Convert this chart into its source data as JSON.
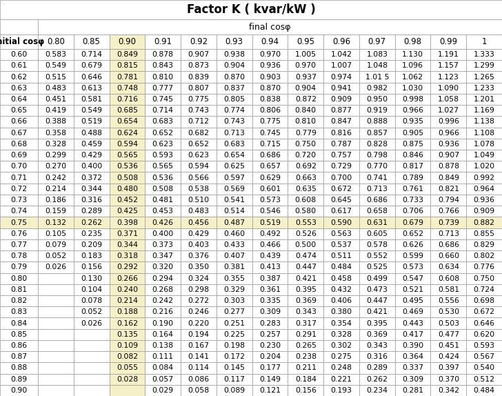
{
  "title": "Factor K ( kvar/kW )",
  "subtitle": "final cosφ",
  "row_header": "initial cosφ",
  "col_headers": [
    "0.80",
    "0.85",
    "0.90",
    "0.91",
    "0.92",
    "0.93",
    "0.94",
    "0.95",
    "0.96",
    "0.97",
    "0.98",
    "0.99",
    "1"
  ],
  "row_labels": [
    "0.60",
    "0.61",
    "0.62",
    "0.63",
    "0.64",
    "0.65",
    "0.66",
    "0.67",
    "0.68",
    "0.69",
    "0.70",
    "0.71",
    "0.72",
    "0.73",
    "0.74",
    "0.75",
    "0.76",
    "0.77",
    "0.78",
    "0.79",
    "0.80",
    "0.81",
    "0.82",
    "0.83",
    "0.84",
    "0.85",
    "0.86",
    "0.87",
    "0.88",
    "0.89",
    "0.90"
  ],
  "table_data": [
    [
      "0.583",
      "0.714",
      "0.849",
      "0.878",
      "0.907",
      "0.938",
      "0.970",
      "1.005",
      "1.042",
      "1.083",
      "1.130",
      "1.191",
      "1.333"
    ],
    [
      "0.549",
      "0.679",
      "0.815",
      "0.843",
      "0.873",
      "0.904",
      "0.936",
      "0.970",
      "1.007",
      "1.048",
      "1.096",
      "1.157",
      "1.299"
    ],
    [
      "0.515",
      "0.646",
      "0.781",
      "0.810",
      "0.839",
      "0.870",
      "0.903",
      "0.937",
      "0.974",
      "1.01 5",
      "1.062",
      "1.123",
      "1.265"
    ],
    [
      "0.483",
      "0.613",
      "0.748",
      "0.777",
      "0.807",
      "0.837",
      "0.870",
      "0.904",
      "0.941",
      "0.982",
      "1.030",
      "1.090",
      "1.233"
    ],
    [
      "0.451",
      "0.581",
      "0.716",
      "0.745",
      "0.775",
      "0.805",
      "0.838",
      "0.872",
      "0.909",
      "0.950",
      "0.998",
      "1.058",
      "1.201"
    ],
    [
      "0.419",
      "0.549",
      "0.685",
      "0.714",
      "0.743",
      "0.774",
      "0.806",
      "0.840",
      "0.877",
      "0.919",
      "0.966",
      "1.027",
      "1.169"
    ],
    [
      "0.388",
      "0.519",
      "0.654",
      "0.683",
      "0.712",
      "0.743",
      "0.775",
      "0.810",
      "0.847",
      "0.888",
      "0.935",
      "0.996",
      "1.138"
    ],
    [
      "0.358",
      "0.488",
      "0.624",
      "0.652",
      "0.682",
      "0.713",
      "0.745",
      "0.779",
      "0.816",
      "0.857",
      "0.905",
      "0.966",
      "1.108"
    ],
    [
      "0.328",
      "0.459",
      "0.594",
      "0.623",
      "0.652",
      "0.683",
      "0.715",
      "0.750",
      "0.787",
      "0.828",
      "0.875",
      "0.936",
      "1.078"
    ],
    [
      "0.299",
      "0.429",
      "0.565",
      "0.593",
      "0.623",
      "0.654",
      "0.686",
      "0.720",
      "0.757",
      "0.798",
      "0.846",
      "0.907",
      "1.049"
    ],
    [
      "0.270",
      "0.400",
      "0.536",
      "0.565",
      "0.594",
      "0.625",
      "0.657",
      "0.692",
      "0.729",
      "0.770",
      "0.817",
      "0.878",
      "1.020"
    ],
    [
      "0.242",
      "0.372",
      "0.508",
      "0.536",
      "0.566",
      "0.597",
      "0.629",
      "0.663",
      "0.700",
      "0.741",
      "0.789",
      "0.849",
      "0.992"
    ],
    [
      "0.214",
      "0.344",
      "0.480",
      "0.508",
      "0.538",
      "0.569",
      "0.601",
      "0.635",
      "0.672",
      "0.713",
      "0.761",
      "0.821",
      "0.964"
    ],
    [
      "0.186",
      "0.316",
      "0.452",
      "0.481",
      "0.510",
      "0.541",
      "0.573",
      "0.608",
      "0.645",
      "0.686",
      "0.733",
      "0.794",
      "0.936"
    ],
    [
      "0.159",
      "0.289",
      "0.425",
      "0.453",
      "0.483",
      "0.514",
      "0.546",
      "0.580",
      "0.617",
      "0.658",
      "0.706",
      "0.766",
      "0.909"
    ],
    [
      "0.132",
      "0.262",
      "0.398",
      "0.426",
      "0.456",
      "0.487",
      "0.519",
      "0.553",
      "0.590",
      "0.631",
      "0.679",
      "0.739",
      "0.882"
    ],
    [
      "0.105",
      "0.235",
      "0.371",
      "0.400",
      "0.429",
      "0.460",
      "0.492",
      "0.526",
      "0.563",
      "0.605",
      "0.652",
      "0.713",
      "0.855"
    ],
    [
      "0.079",
      "0.209",
      "0.344",
      "0.373",
      "0.403",
      "0.433",
      "0.466",
      "0.500",
      "0.537",
      "0.578",
      "0.626",
      "0.686",
      "0.829"
    ],
    [
      "0.052",
      "0.183",
      "0.318",
      "0.347",
      "0.376",
      "0.407",
      "0.439",
      "0.474",
      "0.511",
      "0.552",
      "0.599",
      "0.660",
      "0.802"
    ],
    [
      "0.026",
      "0.156",
      "0.292",
      "0.320",
      "0.350",
      "0.381",
      "0.413",
      "0.447",
      "0.484",
      "0.525",
      "0.573",
      "0.634",
      "0.776"
    ],
    [
      "",
      "0.130",
      "0.266",
      "0.294",
      "0.324",
      "0.355",
      "0.387",
      "0.421",
      "0.458",
      "0.499",
      "0.547",
      "0.608",
      "0.750"
    ],
    [
      "",
      "0.104",
      "0.240",
      "0.268",
      "0.298",
      "0.329",
      "0.361",
      "0.395",
      "0.432",
      "0.473",
      "0.521",
      "0.581",
      "0.724"
    ],
    [
      "",
      "0.078",
      "0.214",
      "0.242",
      "0.272",
      "0.303",
      "0.335",
      "0.369",
      "0.406",
      "0.447",
      "0.495",
      "0.556",
      "0.698"
    ],
    [
      "",
      "0.052",
      "0.188",
      "0.216",
      "0.246",
      "0.277",
      "0.309",
      "0.343",
      "0.380",
      "0.421",
      "0.469",
      "0.530",
      "0.672"
    ],
    [
      "",
      "0.026",
      "0.162",
      "0.190",
      "0.220",
      "0.251",
      "0.283",
      "0.317",
      "0.354",
      "0.395",
      "0.443",
      "0.503",
      "0.646"
    ],
    [
      "",
      "",
      "0.135",
      "0.164",
      "0.194",
      "0.225",
      "0.257",
      "0.291",
      "0.328",
      "0.369",
      "0.417",
      "0.477",
      "0.620"
    ],
    [
      "",
      "",
      "0.109",
      "0.138",
      "0.167",
      "0.198",
      "0.230",
      "0.265",
      "0.302",
      "0.343",
      "0.390",
      "0.451",
      "0.593"
    ],
    [
      "",
      "",
      "0.082",
      "0.111",
      "0.141",
      "0.172",
      "0.204",
      "0.238",
      "0.275",
      "0.316",
      "0.364",
      "0.424",
      "0.567"
    ],
    [
      "",
      "",
      "0.055",
      "0.084",
      "0.114",
      "0.145",
      "0.177",
      "0.211",
      "0.248",
      "0.289",
      "0.337",
      "0.397",
      "0.540"
    ],
    [
      "",
      "",
      "0.028",
      "0.057",
      "0.086",
      "0.117",
      "0.149",
      "0.184",
      "0.221",
      "0.262",
      "0.309",
      "0.370",
      "0.512"
    ],
    [
      "",
      "",
      "",
      "0.029",
      "0.058",
      "0.089",
      "0.121",
      "0.156",
      "0.193",
      "0.234",
      "0.281",
      "0.342",
      "0.484"
    ]
  ],
  "highlight_col": 2,
  "highlight_row": 15,
  "highlight_color": "#f5f0c8",
  "white": "#ffffff",
  "grid_color": "#999999",
  "title_fontsize": 12,
  "header_fontsize": 8.5,
  "cell_fontsize": 7.8,
  "fig_width": 7.28,
  "fig_height": 5.74,
  "dpi": 100
}
